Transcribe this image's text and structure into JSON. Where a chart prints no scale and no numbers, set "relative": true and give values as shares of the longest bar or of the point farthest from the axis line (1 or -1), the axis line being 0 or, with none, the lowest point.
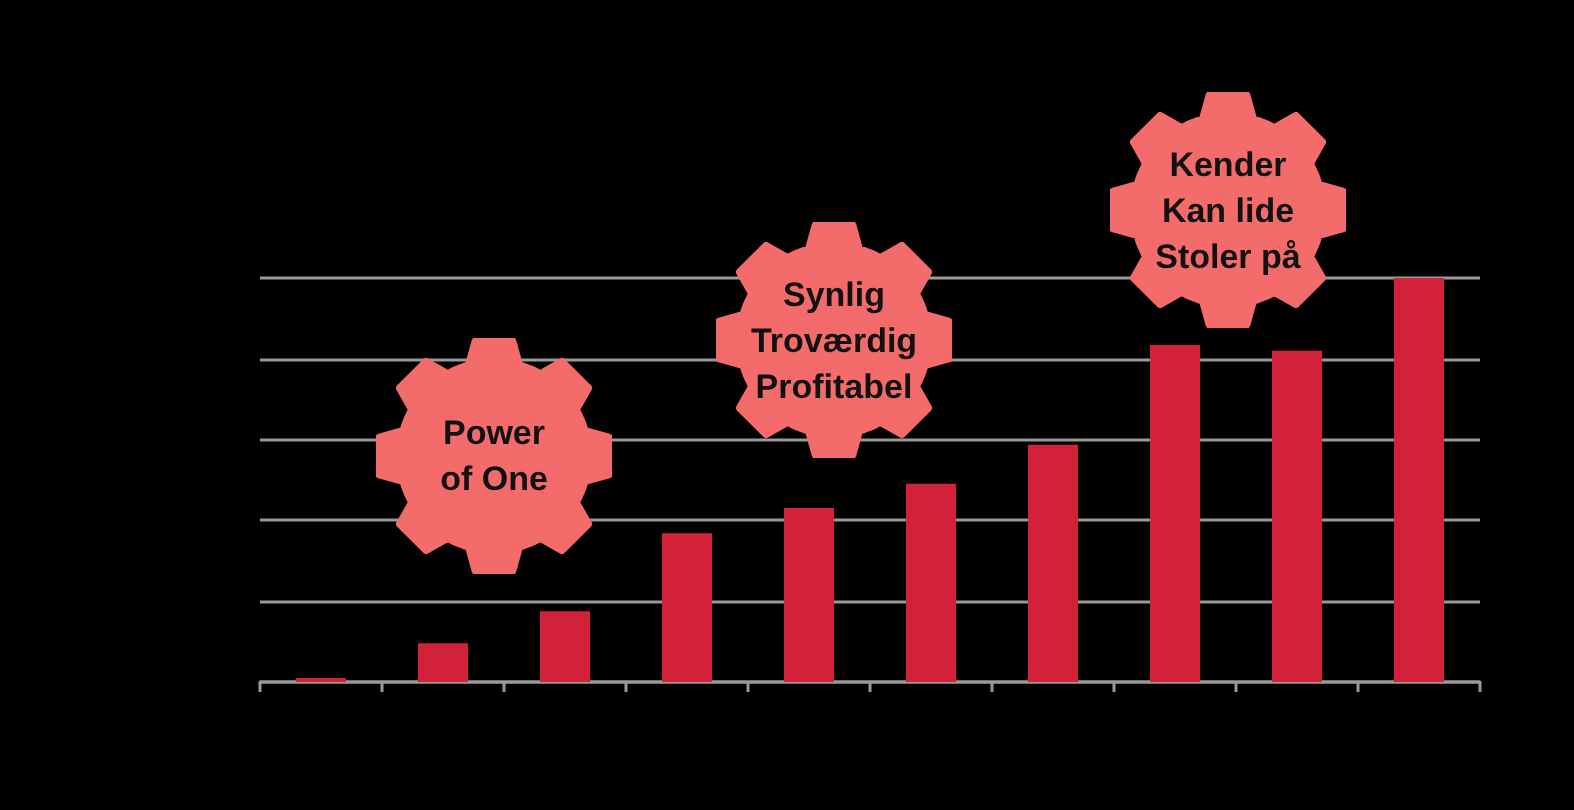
{
  "chart_data": {
    "type": "bar",
    "relative": true,
    "categories": [
      null,
      null,
      null,
      null,
      null,
      null,
      null,
      null,
      null,
      null
    ],
    "values": [
      0.01,
      0.096,
      0.175,
      0.368,
      0.431,
      0.491,
      0.587,
      0.834,
      0.82,
      1
    ],
    "color": "#d3213a",
    "grid": "y",
    "annotations": [
      "Power of One",
      "Synlig Troværdig Profitabel",
      "Kender Kan lide Stoler på"
    ]
  }
}
